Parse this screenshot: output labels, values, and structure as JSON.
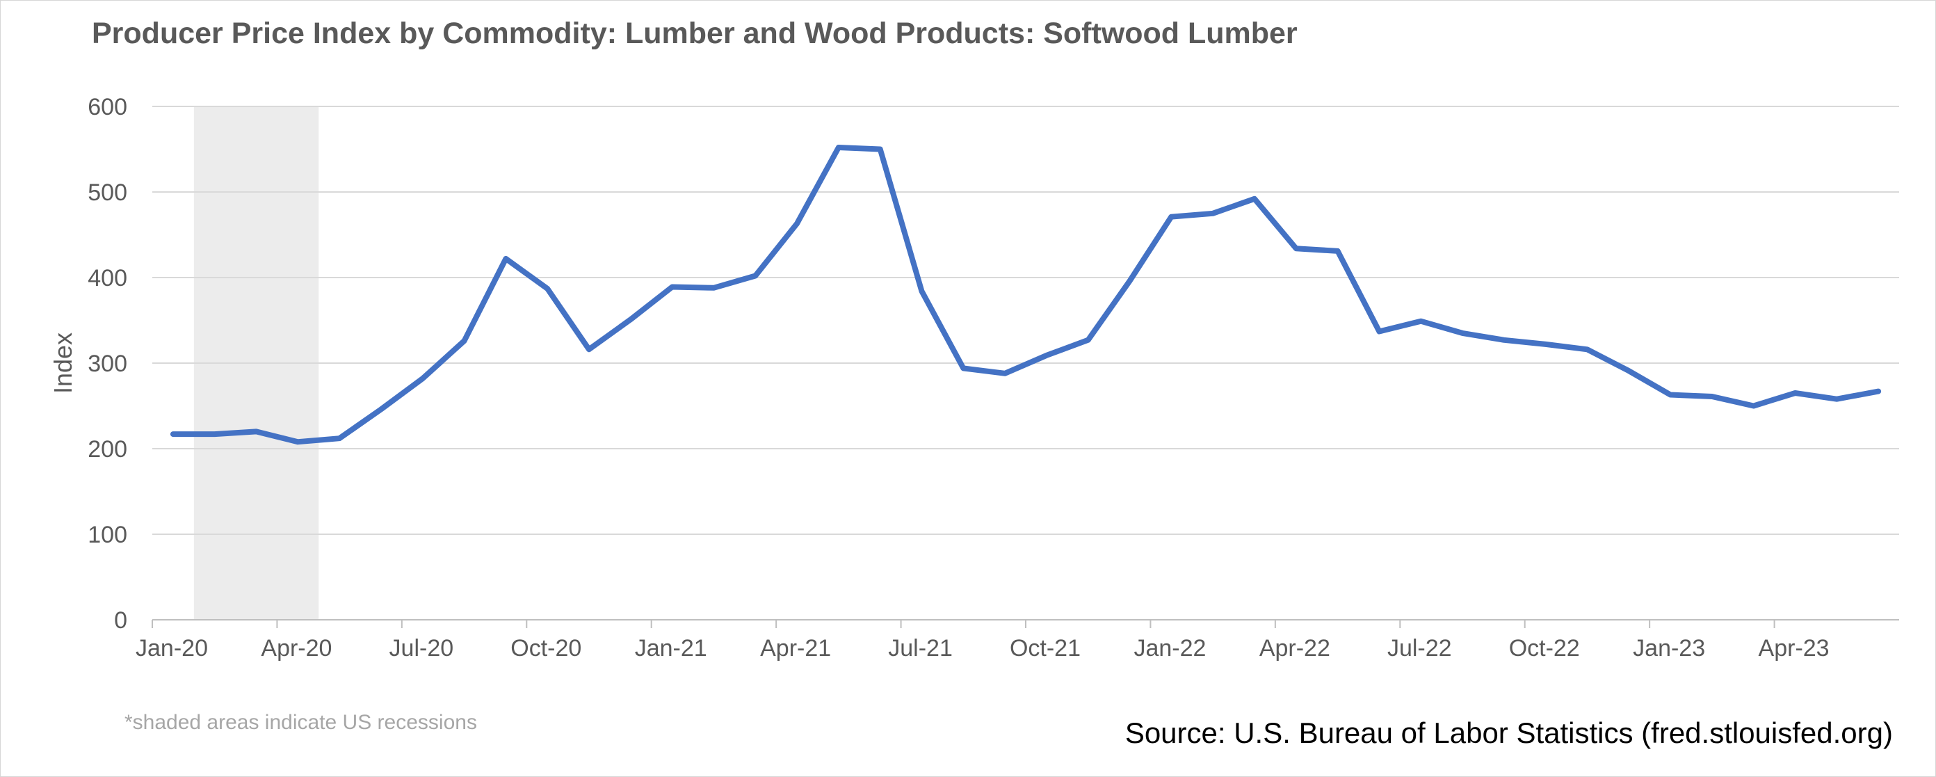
{
  "chart_data": {
    "type": "line",
    "title": "Producer Price Index by Commodity: Lumber and Wood Products: Softwood Lumber",
    "ylabel": "Index",
    "xlabel": "",
    "ylim": [
      0,
      600
    ],
    "yticks": [
      0,
      100,
      200,
      300,
      400,
      500,
      600
    ],
    "xtick_labels": [
      "Jan-20",
      "Apr-20",
      "Jul-20",
      "Oct-20",
      "Jan-21",
      "Apr-21",
      "Jul-21",
      "Oct-21",
      "Jan-22",
      "Apr-22",
      "Jul-22",
      "Oct-22",
      "Jan-23",
      "Apr-23"
    ],
    "x": [
      "2020-01",
      "2020-02",
      "2020-03",
      "2020-04",
      "2020-05",
      "2020-06",
      "2020-07",
      "2020-08",
      "2020-09",
      "2020-10",
      "2020-11",
      "2020-12",
      "2021-01",
      "2021-02",
      "2021-03",
      "2021-04",
      "2021-05",
      "2021-06",
      "2021-07",
      "2021-08",
      "2021-09",
      "2021-10",
      "2021-11",
      "2021-12",
      "2022-01",
      "2022-02",
      "2022-03",
      "2022-04",
      "2022-05",
      "2022-06",
      "2022-07",
      "2022-08",
      "2022-09",
      "2022-10",
      "2022-11",
      "2022-12",
      "2023-01",
      "2023-02",
      "2023-03",
      "2023-04",
      "2023-05",
      "2023-06"
    ],
    "series": [
      {
        "values": [
          217,
          217,
          220,
          208,
          212,
          246,
          282,
          326,
          422,
          387,
          316,
          351,
          389,
          388,
          402,
          463,
          552,
          550,
          384,
          294,
          288,
          309,
          327,
          396,
          471,
          475,
          492,
          434,
          431,
          337,
          349,
          335,
          327,
          322,
          316,
          291,
          263,
          261,
          250,
          265,
          258,
          267
        ],
        "color": "#4472c4"
      }
    ],
    "recession_shading": {
      "start": "2020-02",
      "end": "2020-04",
      "color": "#ececec"
    },
    "grid": true,
    "legend": "none",
    "note": "*shaded areas indicate US recessions",
    "source": "Source: U.S. Bureau of Labor Statistics (fred.stlouisfed.org)"
  }
}
